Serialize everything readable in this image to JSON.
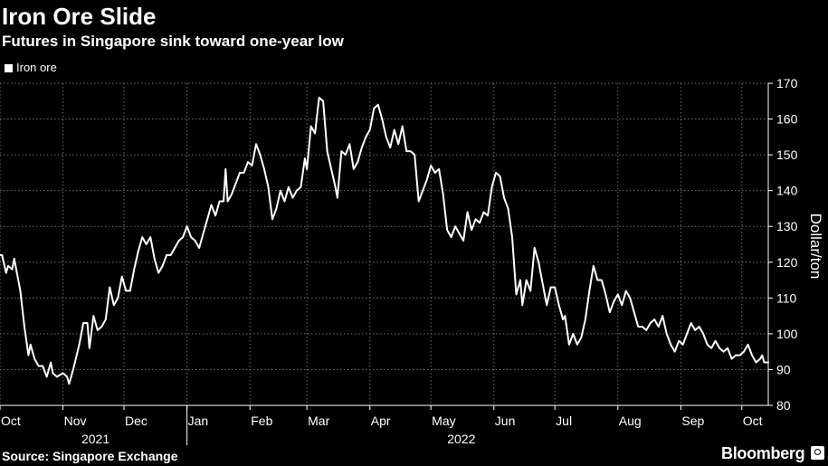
{
  "header": {
    "title": "Iron Ore Slide",
    "subtitle": "Futures in Singapore sink toward one-year low"
  },
  "footer": {
    "source": "Source: Singapore Exchange",
    "brand": "Bloomberg"
  },
  "colors": {
    "background": "#000000",
    "line": "#ffffff",
    "grid": "#6e6e6e"
  },
  "chart_data": {
    "type": "line",
    "title": "Iron Ore Slide",
    "subtitle": "Futures in Singapore sink toward one-year low",
    "ylabel": "Dollar/ton",
    "ylim": [
      80,
      170
    ],
    "yticks": [
      80,
      90,
      100,
      110,
      120,
      130,
      140,
      150,
      160,
      170
    ],
    "y_axis_side": "right",
    "grid": "dotted",
    "legend_position": "top-left",
    "xlim": [
      "2021-10-01",
      "2022-10-14"
    ],
    "x_ticks": [
      {
        "label": "Oct",
        "date": "2021-10-01"
      },
      {
        "label": "Nov",
        "date": "2021-11-01"
      },
      {
        "label": "Dec",
        "date": "2021-12-01"
      },
      {
        "label": "Jan",
        "date": "2022-01-01"
      },
      {
        "label": "Feb",
        "date": "2022-02-01"
      },
      {
        "label": "Mar",
        "date": "2022-03-01"
      },
      {
        "label": "Apr",
        "date": "2022-04-01"
      },
      {
        "label": "May",
        "date": "2022-05-01"
      },
      {
        "label": "Jun",
        "date": "2022-06-01"
      },
      {
        "label": "Jul",
        "date": "2022-07-01"
      },
      {
        "label": "Aug",
        "date": "2022-08-01"
      },
      {
        "label": "Sep",
        "date": "2022-09-01"
      },
      {
        "label": "Oct",
        "date": "2022-10-01"
      }
    ],
    "year_labels": [
      {
        "label": "2021",
        "date": "2021-11-17"
      },
      {
        "label": "2022",
        "date": "2022-05-16"
      }
    ],
    "year_divider": "2022-01-01",
    "series": [
      {
        "name": "Iron ore",
        "points": [
          [
            "2021-10-01",
            122
          ],
          [
            "2021-10-02",
            122
          ],
          [
            "2021-10-04",
            117
          ],
          [
            "2021-10-05",
            119
          ],
          [
            "2021-10-07",
            118
          ],
          [
            "2021-10-08",
            121
          ],
          [
            "2021-10-11",
            112
          ],
          [
            "2021-10-13",
            102
          ],
          [
            "2021-10-15",
            94
          ],
          [
            "2021-10-16",
            97
          ],
          [
            "2021-10-18",
            93
          ],
          [
            "2021-10-20",
            91
          ],
          [
            "2021-10-22",
            91
          ],
          [
            "2021-10-24",
            88
          ],
          [
            "2021-10-26",
            92
          ],
          [
            "2021-10-27",
            89
          ],
          [
            "2021-10-29",
            88
          ],
          [
            "2021-11-01",
            89
          ],
          [
            "2021-11-03",
            88
          ],
          [
            "2021-11-04",
            86
          ],
          [
            "2021-11-06",
            90
          ],
          [
            "2021-11-09",
            97
          ],
          [
            "2021-11-11",
            103
          ],
          [
            "2021-11-13",
            103
          ],
          [
            "2021-11-14",
            96
          ],
          [
            "2021-11-16",
            105
          ],
          [
            "2021-11-18",
            101
          ],
          [
            "2021-11-20",
            102
          ],
          [
            "2021-11-22",
            104
          ],
          [
            "2021-11-24",
            113
          ],
          [
            "2021-11-26",
            108
          ],
          [
            "2021-11-28",
            110
          ],
          [
            "2021-11-30",
            116
          ],
          [
            "2021-12-02",
            112
          ],
          [
            "2021-12-04",
            112
          ],
          [
            "2021-12-06",
            118
          ],
          [
            "2021-12-08",
            123
          ],
          [
            "2021-12-10",
            127
          ],
          [
            "2021-12-12",
            125
          ],
          [
            "2021-12-14",
            127
          ],
          [
            "2021-12-16",
            121
          ],
          [
            "2021-12-18",
            117
          ],
          [
            "2021-12-20",
            119
          ],
          [
            "2021-12-22",
            122
          ],
          [
            "2021-12-24",
            122
          ],
          [
            "2021-12-26",
            124
          ],
          [
            "2021-12-28",
            126
          ],
          [
            "2021-12-30",
            127
          ],
          [
            "2022-01-01",
            130
          ],
          [
            "2022-01-03",
            127
          ],
          [
            "2022-01-05",
            126
          ],
          [
            "2022-01-07",
            124
          ],
          [
            "2022-01-09",
            128
          ],
          [
            "2022-01-11",
            132
          ],
          [
            "2022-01-13",
            136
          ],
          [
            "2022-01-15",
            133
          ],
          [
            "2022-01-17",
            137
          ],
          [
            "2022-01-19",
            137
          ],
          [
            "2022-01-20",
            146
          ],
          [
            "2022-01-21",
            137
          ],
          [
            "2022-01-23",
            139
          ],
          [
            "2022-01-25",
            142
          ],
          [
            "2022-01-27",
            145
          ],
          [
            "2022-01-29",
            145
          ],
          [
            "2022-01-31",
            148
          ],
          [
            "2022-02-02",
            147
          ],
          [
            "2022-02-04",
            153
          ],
          [
            "2022-02-06",
            150
          ],
          [
            "2022-02-08",
            146
          ],
          [
            "2022-02-10",
            141
          ],
          [
            "2022-02-12",
            132
          ],
          [
            "2022-02-14",
            135
          ],
          [
            "2022-02-16",
            140
          ],
          [
            "2022-02-18",
            137
          ],
          [
            "2022-02-20",
            141
          ],
          [
            "2022-02-22",
            138
          ],
          [
            "2022-02-24",
            140
          ],
          [
            "2022-02-26",
            141
          ],
          [
            "2022-02-28",
            149
          ],
          [
            "2022-03-01",
            146
          ],
          [
            "2022-03-03",
            158
          ],
          [
            "2022-03-05",
            156
          ],
          [
            "2022-03-07",
            166
          ],
          [
            "2022-03-09",
            165
          ],
          [
            "2022-03-11",
            151
          ],
          [
            "2022-03-13",
            146
          ],
          [
            "2022-03-15",
            141
          ],
          [
            "2022-03-16",
            138
          ],
          [
            "2022-03-18",
            151
          ],
          [
            "2022-03-20",
            150
          ],
          [
            "2022-03-22",
            153
          ],
          [
            "2022-03-24",
            146
          ],
          [
            "2022-03-26",
            148
          ],
          [
            "2022-03-28",
            152
          ],
          [
            "2022-03-30",
            155
          ],
          [
            "2022-04-01",
            157
          ],
          [
            "2022-04-03",
            163
          ],
          [
            "2022-04-05",
            164
          ],
          [
            "2022-04-07",
            160
          ],
          [
            "2022-04-09",
            155
          ],
          [
            "2022-04-11",
            152
          ],
          [
            "2022-04-13",
            157
          ],
          [
            "2022-04-15",
            153
          ],
          [
            "2022-04-17",
            158
          ],
          [
            "2022-04-19",
            151
          ],
          [
            "2022-04-21",
            151
          ],
          [
            "2022-04-23",
            150
          ],
          [
            "2022-04-25",
            137
          ],
          [
            "2022-04-27",
            140
          ],
          [
            "2022-04-29",
            143
          ],
          [
            "2022-05-01",
            147
          ],
          [
            "2022-05-03",
            145
          ],
          [
            "2022-05-05",
            146
          ],
          [
            "2022-05-07",
            139
          ],
          [
            "2022-05-09",
            129
          ],
          [
            "2022-05-11",
            127
          ],
          [
            "2022-05-13",
            130
          ],
          [
            "2022-05-15",
            128
          ],
          [
            "2022-05-17",
            126
          ],
          [
            "2022-05-19",
            134
          ],
          [
            "2022-05-21",
            129
          ],
          [
            "2022-05-23",
            132
          ],
          [
            "2022-05-25",
            131
          ],
          [
            "2022-05-27",
            134
          ],
          [
            "2022-05-29",
            133
          ],
          [
            "2022-05-31",
            141
          ],
          [
            "2022-06-02",
            145
          ],
          [
            "2022-06-04",
            144
          ],
          [
            "2022-06-06",
            138
          ],
          [
            "2022-06-08",
            135
          ],
          [
            "2022-06-10",
            127
          ],
          [
            "2022-06-12",
            111
          ],
          [
            "2022-06-14",
            115
          ],
          [
            "2022-06-15",
            108
          ],
          [
            "2022-06-17",
            115
          ],
          [
            "2022-06-19",
            112
          ],
          [
            "2022-06-21",
            124
          ],
          [
            "2022-06-23",
            120
          ],
          [
            "2022-06-25",
            114
          ],
          [
            "2022-06-27",
            108
          ],
          [
            "2022-06-29",
            113
          ],
          [
            "2022-07-01",
            113
          ],
          [
            "2022-07-03",
            108
          ],
          [
            "2022-07-05",
            104
          ],
          [
            "2022-07-06",
            105
          ],
          [
            "2022-07-08",
            97
          ],
          [
            "2022-07-10",
            100
          ],
          [
            "2022-07-12",
            97
          ],
          [
            "2022-07-14",
            99
          ],
          [
            "2022-07-16",
            104
          ],
          [
            "2022-07-18",
            112
          ],
          [
            "2022-07-20",
            119
          ],
          [
            "2022-07-22",
            115
          ],
          [
            "2022-07-24",
            115
          ],
          [
            "2022-07-26",
            111
          ],
          [
            "2022-07-28",
            106
          ],
          [
            "2022-07-30",
            109
          ],
          [
            "2022-08-01",
            111
          ],
          [
            "2022-08-03",
            108
          ],
          [
            "2022-08-05",
            112
          ],
          [
            "2022-08-07",
            110
          ],
          [
            "2022-08-09",
            106
          ],
          [
            "2022-08-11",
            102
          ],
          [
            "2022-08-13",
            102
          ],
          [
            "2022-08-15",
            101
          ],
          [
            "2022-08-17",
            103
          ],
          [
            "2022-08-19",
            104
          ],
          [
            "2022-08-21",
            102
          ],
          [
            "2022-08-23",
            105
          ],
          [
            "2022-08-25",
            100
          ],
          [
            "2022-08-27",
            97
          ],
          [
            "2022-08-29",
            95
          ],
          [
            "2022-08-31",
            98
          ],
          [
            "2022-09-02",
            97
          ],
          [
            "2022-09-04",
            100
          ],
          [
            "2022-09-06",
            103
          ],
          [
            "2022-09-08",
            101
          ],
          [
            "2022-09-10",
            102
          ],
          [
            "2022-09-12",
            100
          ],
          [
            "2022-09-14",
            97
          ],
          [
            "2022-09-16",
            96
          ],
          [
            "2022-09-18",
            98
          ],
          [
            "2022-09-20",
            96
          ],
          [
            "2022-09-22",
            95
          ],
          [
            "2022-09-24",
            96
          ],
          [
            "2022-09-26",
            93
          ],
          [
            "2022-09-28",
            94
          ],
          [
            "2022-09-30",
            94
          ],
          [
            "2022-10-02",
            95
          ],
          [
            "2022-10-04",
            97
          ],
          [
            "2022-10-06",
            94
          ],
          [
            "2022-10-08",
            92
          ],
          [
            "2022-10-10",
            93
          ],
          [
            "2022-10-11",
            94
          ],
          [
            "2022-10-12",
            92
          ],
          [
            "2022-10-14",
            92
          ]
        ]
      }
    ]
  }
}
